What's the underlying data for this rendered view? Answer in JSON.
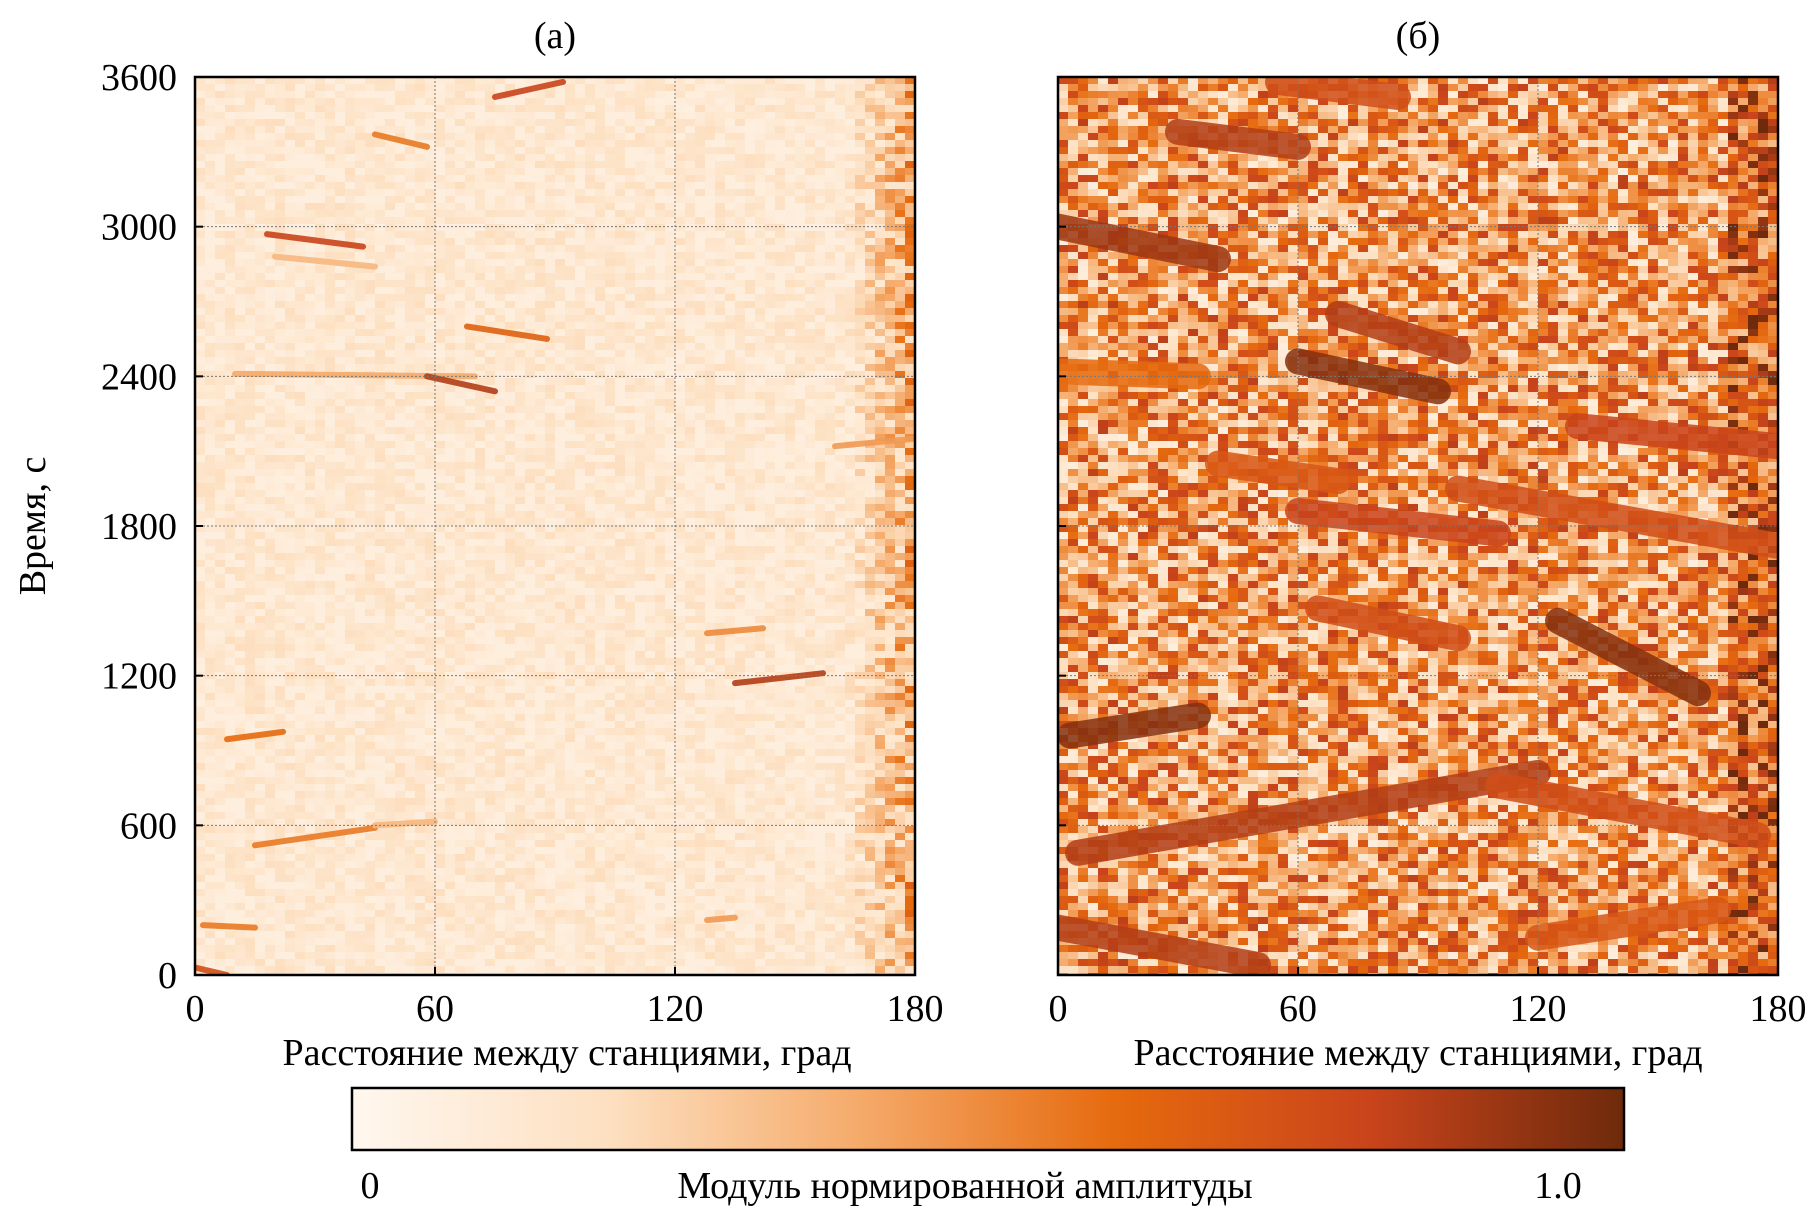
{
  "chart_data": [
    {
      "type": "heatmap",
      "panel_label": "(а)",
      "xlabel": "Расстояние между станциями, град",
      "ylabel": "Время, с",
      "xlim": [
        0,
        180
      ],
      "ylim": [
        0,
        3600
      ],
      "xticks": [
        0,
        60,
        120,
        180
      ],
      "yticks": [
        0,
        600,
        1200,
        1800,
        2400,
        3000,
        3600
      ],
      "grid": true,
      "background_intensity": 0.08,
      "noise_increases_toward": 180,
      "features": [
        {
          "x": [
            0,
            8
          ],
          "t": [
            30,
            0
          ],
          "intensity": 0.75
        },
        {
          "x": [
            2,
            15
          ],
          "t": [
            200,
            190
          ],
          "intensity": 0.55
        },
        {
          "x": [
            8,
            22
          ],
          "t": [
            945,
            975
          ],
          "intensity": 0.6
        },
        {
          "x": [
            15,
            45
          ],
          "t": [
            520,
            590
          ],
          "intensity": 0.55
        },
        {
          "x": [
            45,
            60
          ],
          "t": [
            600,
            615
          ],
          "intensity": 0.35
        },
        {
          "x": [
            18,
            42
          ],
          "t": [
            2970,
            2920
          ],
          "intensity": 0.8
        },
        {
          "x": [
            20,
            45
          ],
          "t": [
            2880,
            2840
          ],
          "intensity": 0.35
        },
        {
          "x": [
            45,
            58
          ],
          "t": [
            3370,
            3320
          ],
          "intensity": 0.55
        },
        {
          "x": [
            10,
            70
          ],
          "t": [
            2410,
            2400
          ],
          "intensity": 0.4
        },
        {
          "x": [
            58,
            75
          ],
          "t": [
            2400,
            2340
          ],
          "intensity": 0.85
        },
        {
          "x": [
            68,
            88
          ],
          "t": [
            2600,
            2550
          ],
          "intensity": 0.65
        },
        {
          "x": [
            75,
            92
          ],
          "t": [
            3520,
            3580
          ],
          "intensity": 0.8
        },
        {
          "x": [
            135,
            157
          ],
          "t": [
            1170,
            1210
          ],
          "intensity": 0.85
        },
        {
          "x": [
            128,
            142
          ],
          "t": [
            1370,
            1390
          ],
          "intensity": 0.5
        },
        {
          "x": [
            128,
            135
          ],
          "t": [
            220,
            230
          ],
          "intensity": 0.45
        },
        {
          "x": [
            160,
            180
          ],
          "t": [
            2120,
            2150
          ],
          "intensity": 0.45
        }
      ]
    },
    {
      "type": "heatmap",
      "panel_label": "(б)",
      "xlabel": "Расстояние между станциями, град",
      "ylabel": "",
      "xlim": [
        0,
        180
      ],
      "ylim": [
        0,
        3600
      ],
      "xticks": [
        0,
        60,
        120,
        180
      ],
      "yticks": [
        0,
        600,
        1200,
        1800,
        2400,
        3000,
        3600
      ],
      "grid": true,
      "background_intensity": 0.45,
      "noise_increases_toward": 180,
      "features": [
        {
          "x": [
            0,
            40
          ],
          "t": [
            3000,
            2870
          ],
          "intensity": 0.9
        },
        {
          "x": [
            30,
            60
          ],
          "t": [
            3380,
            3320
          ],
          "intensity": 0.85
        },
        {
          "x": [
            55,
            85
          ],
          "t": [
            3580,
            3520
          ],
          "intensity": 0.75
        },
        {
          "x": [
            60,
            95
          ],
          "t": [
            2460,
            2340
          ],
          "intensity": 0.95
        },
        {
          "x": [
            70,
            100
          ],
          "t": [
            2650,
            2500
          ],
          "intensity": 0.85
        },
        {
          "x": [
            0,
            35
          ],
          "t": [
            2420,
            2400
          ],
          "intensity": 0.6
        },
        {
          "x": [
            40,
            70
          ],
          "t": [
            2050,
            1980
          ],
          "intensity": 0.7
        },
        {
          "x": [
            60,
            110
          ],
          "t": [
            1860,
            1770
          ],
          "intensity": 0.8
        },
        {
          "x": [
            130,
            180
          ],
          "t": [
            2200,
            2120
          ],
          "intensity": 0.8
        },
        {
          "x": [
            100,
            180
          ],
          "t": [
            1950,
            1720
          ],
          "intensity": 0.75
        },
        {
          "x": [
            65,
            100
          ],
          "t": [
            1470,
            1350
          ],
          "intensity": 0.75
        },
        {
          "x": [
            125,
            160
          ],
          "t": [
            1420,
            1130
          ],
          "intensity": 0.95
        },
        {
          "x": [
            3,
            35
          ],
          "t": [
            960,
            1040
          ],
          "intensity": 0.95
        },
        {
          "x": [
            5,
            120
          ],
          "t": [
            490,
            810
          ],
          "intensity": 0.85
        },
        {
          "x": [
            110,
            175
          ],
          "t": [
            760,
            560
          ],
          "intensity": 0.75
        },
        {
          "x": [
            0,
            50
          ],
          "t": [
            190,
            40
          ],
          "intensity": 0.85
        },
        {
          "x": [
            120,
            165
          ],
          "t": [
            150,
            260
          ],
          "intensity": 0.7
        }
      ]
    }
  ],
  "colorbar": {
    "label": "Модуль нормированной амплитуды",
    "min_label": "0",
    "max_label": "1.0",
    "min": 0,
    "max": 1.0,
    "colors": [
      "#fff7ef",
      "#fde0c1",
      "#f5aa6a",
      "#e66a0e",
      "#c9441b",
      "#6e2a0c"
    ]
  }
}
